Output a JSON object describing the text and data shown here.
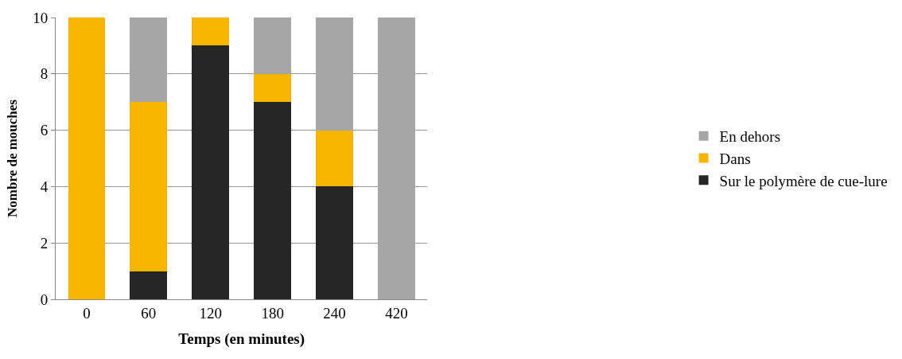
{
  "chart_data": {
    "type": "bar",
    "stacked": true,
    "xlabel": "Temps (en minutes)",
    "ylabel": "Nombre de mouches",
    "categories": [
      "0",
      "60",
      "120",
      "180",
      "240",
      "420"
    ],
    "series": [
      {
        "name": "Sur le polymère de cue-lure",
        "color": "#262626",
        "values": [
          0,
          1,
          9,
          7,
          4,
          0
        ]
      },
      {
        "name": "Dans",
        "color": "#f7b500",
        "values": [
          10,
          6,
          1,
          1,
          2,
          0
        ]
      },
      {
        "name": "En dehors",
        "color": "#a6a6a6",
        "values": [
          0,
          3,
          0,
          2,
          4,
          10
        ]
      }
    ],
    "ylim": [
      0,
      10
    ],
    "yticks": [
      0,
      2,
      4,
      6,
      8,
      10
    ],
    "grid": "y",
    "legend": "right"
  }
}
